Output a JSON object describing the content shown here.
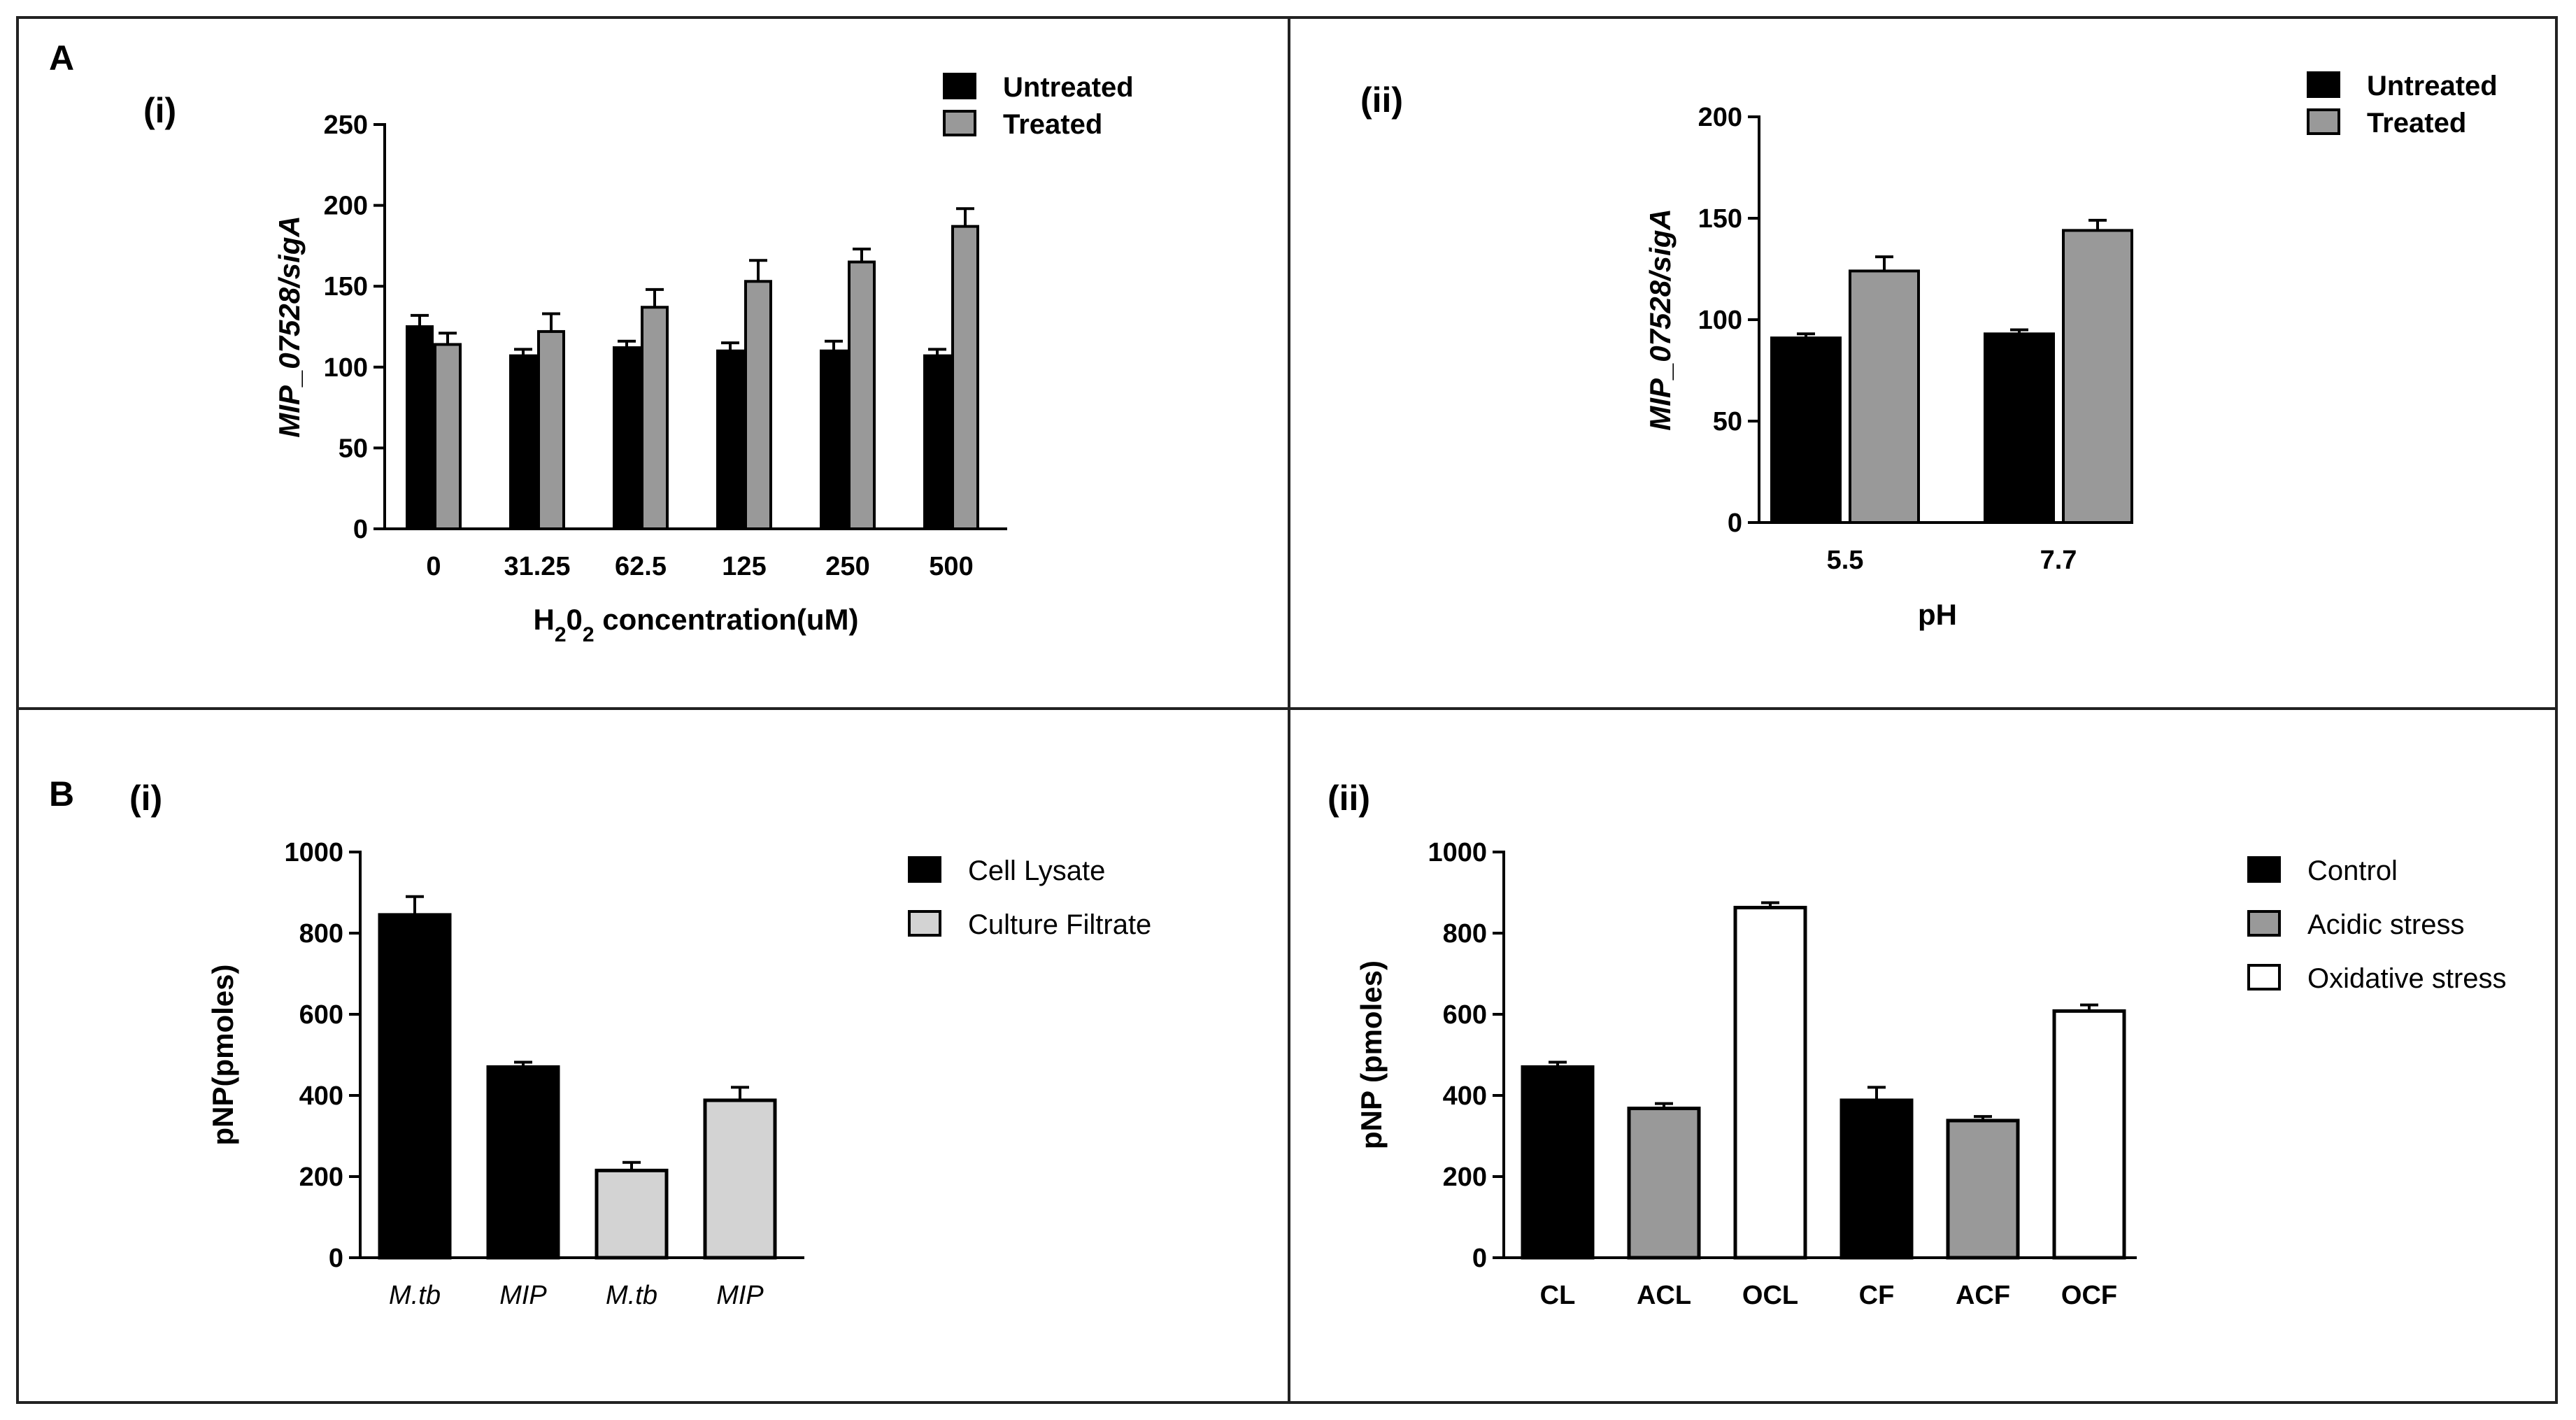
{
  "figure": {
    "panel_A": "A",
    "panel_B": "B"
  },
  "chart_data": [
    {
      "id": "Ai",
      "panel_label": "(i)",
      "type": "bar",
      "title": "",
      "xlabel_prefix": "H",
      "xlabel_sub1": "2",
      "xlabel_mid": "0",
      "xlabel_sub2": "2",
      "xlabel_suffix": " concentration(uM)",
      "ylabel": "MIP_07528/sigA",
      "categories": [
        "0",
        "31.25",
        "62.5",
        "125",
        "250",
        "500"
      ],
      "ylim": [
        0,
        250
      ],
      "yticks": [
        "0",
        "50",
        "100",
        "150",
        "200",
        "250"
      ],
      "legend_position": "top-right",
      "series": [
        {
          "name": "Untreated",
          "color": "#000000",
          "values": [
            125,
            107,
            112,
            110,
            110,
            107
          ],
          "errors": [
            7,
            4,
            4,
            5,
            6,
            4
          ]
        },
        {
          "name": "Treated",
          "color": "#999999",
          "values": [
            114,
            122,
            137,
            153,
            165,
            187
          ],
          "errors": [
            7,
            11,
            11,
            13,
            8,
            11
          ]
        }
      ]
    },
    {
      "id": "Aii",
      "panel_label": "(ii)",
      "type": "bar",
      "title": "",
      "xlabel": "pH",
      "ylabel": "MIP_07528/sigA",
      "categories": [
        "5.5",
        "7.7"
      ],
      "ylim": [
        0,
        200
      ],
      "yticks": [
        "0",
        "50",
        "100",
        "150",
        "200"
      ],
      "legend_position": "top-right",
      "series": [
        {
          "name": "Untreated",
          "color": "#000000",
          "values": [
            91,
            93
          ],
          "errors": [
            2,
            2
          ]
        },
        {
          "name": "Treated",
          "color": "#999999",
          "values": [
            124,
            144
          ],
          "errors": [
            7,
            5
          ]
        }
      ]
    },
    {
      "id": "Bi",
      "panel_label": "(i)",
      "type": "bar",
      "title": "",
      "xlabel": "",
      "ylabel": "pNP(pmoles)",
      "categories": [
        "M.tb",
        "MIP",
        "M.tb",
        "MIP"
      ],
      "ylim": [
        0,
        1000
      ],
      "yticks": [
        "0",
        "200",
        "400",
        "600",
        "800",
        "1000"
      ],
      "legend_position": "top-right",
      "legend": [
        {
          "name": "Cell Lysate",
          "color": "#000000"
        },
        {
          "name": "Culture Filtrate",
          "color": "#d3d3d3"
        }
      ],
      "values": [
        845,
        470,
        215,
        388
      ],
      "errors": [
        45,
        12,
        20,
        32
      ],
      "bar_series": [
        0,
        0,
        1,
        1
      ]
    },
    {
      "id": "Bii",
      "panel_label": "(ii)",
      "type": "bar",
      "title": "",
      "xlabel": "",
      "ylabel": "pNP (pmoles)",
      "categories": [
        "CL",
        "ACL",
        "OCL",
        "CF",
        "ACF",
        "OCF"
      ],
      "ylim": [
        0,
        1000
      ],
      "yticks": [
        "0",
        "200",
        "400",
        "600",
        "800",
        "1000"
      ],
      "legend_position": "top-right",
      "legend": [
        {
          "name": "Control",
          "color": "#000000"
        },
        {
          "name": "Acidic stress",
          "color": "#999999"
        },
        {
          "name": "Oxidative stress",
          "color": "#ffffff"
        }
      ],
      "values": [
        470,
        368,
        863,
        388,
        338,
        608
      ],
      "errors": [
        12,
        12,
        12,
        32,
        10,
        15
      ],
      "bar_series": [
        0,
        1,
        2,
        0,
        1,
        2
      ]
    }
  ]
}
